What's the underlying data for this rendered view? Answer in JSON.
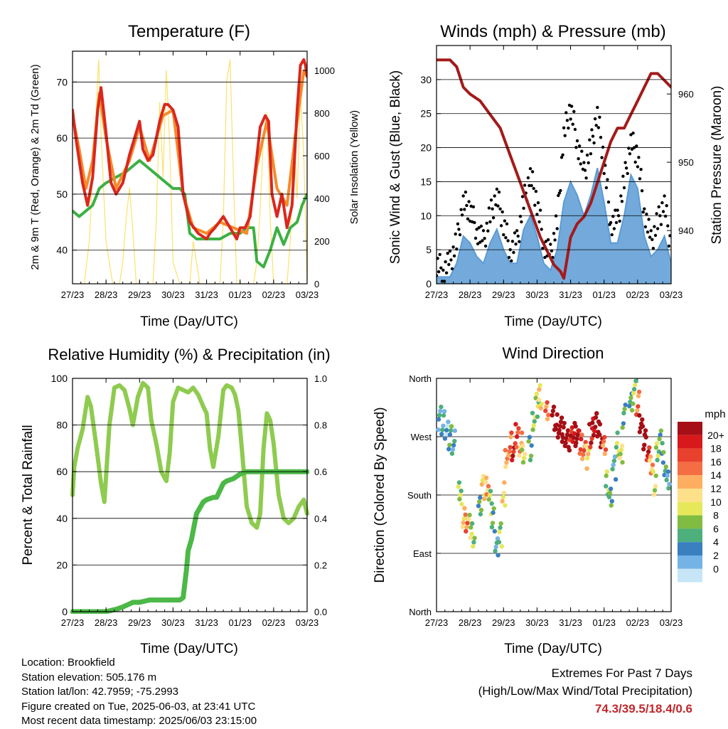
{
  "x_ticks": [
    "27/23",
    "28/23",
    "29/23",
    "30/23",
    "31/23",
    "01/23",
    "02/23",
    "03/23"
  ],
  "colors": {
    "temp_red": "#d9281e",
    "temp_orange": "#f58a2b",
    "dewpoint_green": "#3cb043",
    "solar_yellow": "#fce16a",
    "gust_black": "#000000",
    "wind_blue": "#5b9bd5",
    "pressure_maroon": "#a31b1b",
    "rh_lightgreen": "#8ecb4f",
    "precip_green": "#4cb847",
    "grid": "#000000"
  },
  "info": {
    "location": "Location: Brookfield",
    "elevation": "Station elevation: 505.176 m",
    "latlon": "Station lat/lon: 42.7959; -75.2993",
    "created": "Figure created on Tue, 2025-06-03, at 23:41 UTC",
    "recent": "Most recent data timestamp: 2025/06/03 23:15:00"
  },
  "extremes": {
    "title": "Extremes For Past 7 Days",
    "subtitle": "(High/Low/Max Wind/Total Precipitation)",
    "values": "74.3/39.5/18.4/0.6"
  },
  "chart_data": [
    {
      "id": "temperature",
      "type": "line",
      "title": "Temperature (F)",
      "xlabel": "Time (Day/UTC)",
      "ylabel": "2m & 9m T (Red, Orange) & 2m Td (Green)",
      "y2label": "Solar Insolation (Yellow)",
      "ylim": [
        34,
        75.5
      ],
      "y_ticks": [
        40,
        50,
        60,
        70
      ],
      "y2lim": [
        0,
        1090
      ],
      "y2_ticks": [
        0,
        200,
        400,
        600,
        800,
        1000
      ],
      "series": [
        {
          "key": "t2m",
          "color": "#d9281e",
          "x": [
            0,
            0.1,
            0.2,
            0.3,
            0.45,
            0.6,
            0.75,
            0.85,
            1.0,
            1.15,
            1.3,
            1.5,
            1.7,
            1.9,
            2.0,
            2.1,
            2.25,
            2.4,
            2.6,
            2.75,
            2.85,
            3.0,
            3.15,
            3.3,
            3.5,
            3.75,
            4.0,
            4.1,
            4.25,
            4.5,
            4.7,
            4.9,
            5.0,
            5.15,
            5.3,
            5.45,
            5.6,
            5.75,
            5.85,
            5.95,
            6.1,
            6.25,
            6.4,
            6.55,
            6.7,
            6.8,
            6.9,
            6.95,
            7.0
          ],
          "y": [
            65,
            60,
            56,
            52,
            48,
            53,
            65,
            69,
            61,
            52,
            50,
            52,
            57,
            61,
            63,
            58,
            56,
            57,
            63,
            66,
            66,
            65,
            62,
            50,
            45,
            43,
            42,
            43,
            44,
            46,
            44,
            42,
            44,
            44,
            46,
            54,
            62,
            64,
            63,
            50,
            46,
            50,
            44,
            48,
            65,
            73,
            74,
            73,
            71
          ]
        },
        {
          "key": "t9m",
          "color": "#f58a2b",
          "x": [
            0,
            0.2,
            0.4,
            0.6,
            0.8,
            1.0,
            1.3,
            1.7,
            2.0,
            2.3,
            2.7,
            3.0,
            3.3,
            3.6,
            4.0,
            4.4,
            4.8,
            5.2,
            5.5,
            5.8,
            6.1,
            6.4,
            6.7,
            6.9,
            7.0
          ],
          "y": [
            64,
            58,
            51,
            56,
            68,
            60,
            51,
            56,
            62,
            56,
            64,
            65,
            50,
            44,
            43,
            45,
            44,
            43,
            55,
            63,
            51,
            48,
            63,
            72,
            71
          ]
        },
        {
          "key": "td2m",
          "color": "#3cb043",
          "x": [
            0,
            0.2,
            0.4,
            0.6,
            0.8,
            1.0,
            1.3,
            1.6,
            1.8,
            2.0,
            2.2,
            2.4,
            2.6,
            2.8,
            3.0,
            3.2,
            3.35,
            3.5,
            3.7,
            3.9,
            4.1,
            4.4,
            4.7,
            5.0,
            5.2,
            5.4,
            5.5,
            5.7,
            5.9,
            6.1,
            6.3,
            6.5,
            6.7,
            6.85,
            7.0
          ],
          "y": [
            47,
            46,
            47,
            48,
            51,
            52,
            53,
            54,
            55,
            56,
            55,
            54,
            53,
            52,
            51,
            51,
            50,
            43,
            42,
            42,
            42,
            42,
            43,
            43,
            44,
            44,
            38,
            37,
            40,
            44,
            41,
            44,
            45,
            48,
            50
          ]
        },
        {
          "key": "solar",
          "axis": "y2",
          "color": "#fce16a",
          "x": [
            0,
            0.2,
            0.35,
            0.5,
            0.6,
            0.7,
            0.78,
            0.85,
            1.0,
            1.2,
            1.4,
            1.5,
            1.6,
            1.7,
            1.8,
            1.9,
            2.0,
            2.2,
            2.4,
            2.5,
            2.6,
            2.7,
            2.8,
            2.9,
            3.0,
            3.2,
            3.4,
            3.5,
            3.6,
            3.7,
            3.8,
            3.9,
            4.0,
            4.2,
            4.4,
            4.5,
            4.6,
            4.7,
            4.8,
            4.9,
            5.0,
            5.2,
            5.4,
            5.5,
            5.6,
            5.7,
            5.8,
            5.9,
            6.0,
            6.2,
            6.4,
            6.5,
            6.6,
            6.7,
            6.8,
            6.9,
            7.0
          ],
          "y": [
            0,
            0,
            0,
            200,
            500,
            800,
            1050,
            700,
            200,
            0,
            0,
            100,
            300,
            450,
            250,
            0,
            0,
            0,
            0,
            300,
            850,
            500,
            1000,
            650,
            100,
            0,
            0,
            0,
            200,
            100,
            0,
            0,
            0,
            0,
            0,
            300,
            950,
            1050,
            500,
            0,
            0,
            0,
            0,
            100,
            350,
            700,
            800,
            300,
            0,
            0,
            0,
            200,
            700,
            400,
            900,
            600,
            0
          ]
        }
      ]
    },
    {
      "id": "winds",
      "type": "line",
      "title": "Winds (mph) & Pressure (mb)",
      "xlabel": "Time (Day/UTC)",
      "ylabel": "Sonic Wind & Gust (Blue, Black)",
      "y2label": "Station Pressure (Maroon)",
      "ylim": [
        0,
        35
      ],
      "y_ticks": [
        0,
        5,
        10,
        15,
        20,
        25,
        30
      ],
      "y2lim": [
        932.2,
        967.1
      ],
      "y2_ticks": [
        940,
        950,
        960
      ],
      "series": [
        {
          "key": "wind",
          "color": "#5b9bd5",
          "x": [
            0,
            0.2,
            0.4,
            0.6,
            0.8,
            1.0,
            1.2,
            1.4,
            1.6,
            1.8,
            2.0,
            2.2,
            2.4,
            2.6,
            2.8,
            3.0,
            3.2,
            3.4,
            3.6,
            3.8,
            4.0,
            4.2,
            4.4,
            4.6,
            4.8,
            5.0,
            5.2,
            5.4,
            5.6,
            5.8,
            6.0,
            6.2,
            6.4,
            6.6,
            6.8,
            7.0
          ],
          "y": [
            1,
            1,
            1,
            3,
            7,
            6,
            4,
            3,
            6,
            8,
            5,
            3,
            3,
            8,
            10,
            7,
            3,
            2,
            5,
            12,
            15,
            13,
            10,
            13,
            17,
            12,
            6,
            6,
            10,
            16,
            14,
            7,
            4,
            5,
            7,
            3
          ]
        },
        {
          "key": "gust",
          "color": "#000000",
          "x": [
            0,
            0.2,
            0.4,
            0.6,
            0.8,
            1.0,
            1.2,
            1.4,
            1.6,
            1.8,
            2.0,
            2.2,
            2.4,
            2.6,
            2.8,
            3.0,
            3.2,
            3.4,
            3.6,
            3.8,
            4.0,
            4.2,
            4.4,
            4.6,
            4.8,
            5.0,
            5.2,
            5.4,
            5.6,
            5.8,
            6.0,
            6.2,
            6.4,
            6.6,
            6.8,
            7.0
          ],
          "y": [
            3,
            2,
            3,
            6,
            12,
            11,
            8,
            6,
            10,
            13,
            9,
            5,
            6,
            12,
            16,
            12,
            6,
            4,
            9,
            22,
            26,
            21,
            16,
            20,
            25,
            18,
            9,
            9,
            15,
            21,
            19,
            11,
            6,
            9,
            12,
            5
          ]
        },
        {
          "key": "pressure",
          "axis": "y2",
          "color": "#a31b1b",
          "x": [
            0,
            0.2,
            0.4,
            0.6,
            0.8,
            1.0,
            1.3,
            1.6,
            1.9,
            2.2,
            2.5,
            2.8,
            3.1,
            3.3,
            3.5,
            3.7,
            3.8,
            3.9,
            4.0,
            4.2,
            4.4,
            4.6,
            4.8,
            5.0,
            5.2,
            5.4,
            5.6,
            5.8,
            6.0,
            6.2,
            6.4,
            6.6,
            6.8,
            7.0
          ],
          "y": [
            965,
            965,
            965,
            964,
            961,
            960,
            959,
            957,
            955,
            951,
            947,
            943,
            939,
            937,
            935,
            934,
            933,
            936,
            939,
            941,
            942,
            944,
            947,
            950,
            953,
            955,
            955,
            957,
            959,
            961,
            963,
            963,
            962,
            961
          ]
        }
      ]
    },
    {
      "id": "humidity",
      "type": "line",
      "title": "Relative Humidity (%) & Precipitation (in)",
      "xlabel": "Time (Day/UTC)",
      "ylabel": "Percent & Total Rainfall",
      "ylim": [
        0,
        100
      ],
      "y_ticks": [
        0,
        20,
        40,
        60,
        80,
        100
      ],
      "y2lim": [
        0,
        1.0
      ],
      "y2_ticks": [
        "0.0",
        "0.2",
        "0.4",
        "0.6",
        "0.8",
        "1.0"
      ],
      "series": [
        {
          "key": "rh",
          "color": "#8ecb4f",
          "x": [
            0,
            0.05,
            0.15,
            0.3,
            0.45,
            0.55,
            0.7,
            0.85,
            0.95,
            1.1,
            1.25,
            1.4,
            1.55,
            1.7,
            1.8,
            1.95,
            2.1,
            2.25,
            2.35,
            2.5,
            2.65,
            2.8,
            2.9,
            3.0,
            3.15,
            3.3,
            3.45,
            3.6,
            3.75,
            3.9,
            4.0,
            4.1,
            4.2,
            4.35,
            4.5,
            4.6,
            4.75,
            4.85,
            4.95,
            5.05,
            5.2,
            5.35,
            5.5,
            5.6,
            5.7,
            5.8,
            5.9,
            6.0,
            6.15,
            6.3,
            6.45,
            6.6,
            6.75,
            6.9,
            7.0
          ],
          "y": [
            50,
            62,
            70,
            78,
            92,
            88,
            72,
            55,
            47,
            80,
            96,
            97,
            95,
            87,
            80,
            92,
            98,
            96,
            82,
            72,
            60,
            56,
            68,
            90,
            96,
            95,
            94,
            96,
            93,
            88,
            85,
            70,
            62,
            75,
            95,
            97,
            96,
            93,
            86,
            70,
            45,
            38,
            36,
            42,
            70,
            85,
            82,
            72,
            50,
            40,
            38,
            40,
            45,
            48,
            42
          ]
        },
        {
          "key": "precip",
          "axis": "y2",
          "color": "#4cb847",
          "x": [
            0,
            0.5,
            1.0,
            1.3,
            1.5,
            1.8,
            2.0,
            2.3,
            2.6,
            2.9,
            3.1,
            3.2,
            3.3,
            3.4,
            3.45,
            3.55,
            3.7,
            3.9,
            4.0,
            4.2,
            4.3,
            4.5,
            4.6,
            4.8,
            5.0,
            5.2,
            5.4,
            6.0,
            6.5,
            7.0
          ],
          "y": [
            0,
            0,
            0,
            0.01,
            0.02,
            0.04,
            0.04,
            0.05,
            0.05,
            0.05,
            0.05,
            0.05,
            0.06,
            0.18,
            0.26,
            0.31,
            0.42,
            0.47,
            0.48,
            0.49,
            0.49,
            0.55,
            0.56,
            0.57,
            0.59,
            0.6,
            0.6,
            0.6,
            0.6,
            0.6
          ]
        }
      ]
    },
    {
      "id": "direction",
      "type": "scatter",
      "title": "Wind Direction",
      "xlabel": "Time (Day/UTC)",
      "ylabel": "Direction (Colored By Speed)",
      "y_ticks": [
        "North",
        "West",
        "South",
        "East",
        "North"
      ],
      "ylim": [
        0,
        360
      ],
      "legend": {
        "unit": "mph",
        "labels": [
          "20+",
          "18",
          "16",
          "14",
          "12",
          "10",
          "8",
          "6",
          "4",
          "2",
          "0"
        ],
        "colors": [
          "#a50f15",
          "#d7191c",
          "#e8412d",
          "#f46d43",
          "#fdae61",
          "#fee08b",
          "#e6e85a",
          "#7fbc41",
          "#4daf7c",
          "#3a7fc0",
          "#74b3e6",
          "#c6e6f7"
        ]
      },
      "points_dir": [
        300,
        290,
        280,
        270,
        260,
        180,
        150,
        140,
        130,
        120,
        160,
        190,
        200,
        170,
        140,
        100,
        120,
        180,
        230,
        260,
        250,
        270,
        260,
        240,
        250,
        300,
        320,
        330,
        310,
        300,
        285,
        280,
        275,
        270,
        265,
        275,
        270,
        260,
        255,
        240,
        270,
        285,
        290,
        270,
        250,
        200,
        180,
        220,
        260,
        240,
        300,
        330,
        340,
        320,
        290,
        270,
        250,
        220,
        200,
        250,
        260,
        230,
        200
      ],
      "points_x": [
        0.1,
        0.2,
        0.3,
        0.4,
        0.5,
        0.7,
        0.8,
        0.9,
        1.0,
        1.1,
        1.3,
        1.4,
        1.5,
        1.6,
        1.7,
        1.8,
        1.9,
        2.0,
        2.1,
        2.2,
        2.3,
        2.4,
        2.5,
        2.6,
        2.8,
        2.9,
        3.0,
        3.1,
        3.3,
        3.5,
        3.6,
        3.7,
        3.8,
        3.9,
        4.0,
        4.1,
        4.2,
        4.3,
        4.4,
        4.5,
        4.6,
        4.7,
        4.8,
        4.9,
        5.0,
        5.1,
        5.2,
        5.3,
        5.4,
        5.5,
        5.6,
        5.8,
        5.9,
        6.0,
        6.1,
        6.2,
        6.3,
        6.4,
        6.5,
        6.6,
        6.7,
        6.8,
        6.9
      ],
      "points_speed": [
        2,
        2,
        1,
        3,
        2,
        4,
        6,
        8,
        5,
        4,
        3,
        6,
        7,
        4,
        3,
        2,
        4,
        6,
        7,
        8,
        10,
        9,
        7,
        5,
        3,
        4,
        4,
        6,
        8,
        14,
        15,
        13,
        14,
        12,
        10,
        11,
        12,
        9,
        8,
        6,
        10,
        11,
        13,
        15,
        8,
        4,
        3,
        2,
        4,
        5,
        3,
        3,
        4,
        8,
        13,
        16,
        10,
        7,
        5,
        4,
        3,
        3,
        2
      ]
    }
  ]
}
